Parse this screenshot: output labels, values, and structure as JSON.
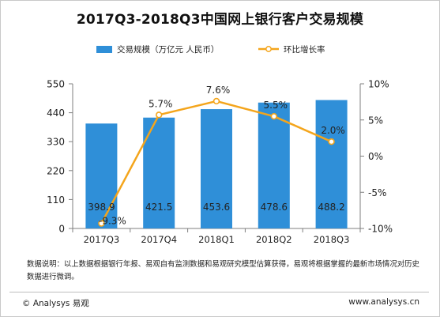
{
  "title": "2017Q3-2018Q3中国网上银行客户交易规模",
  "note": "数据说明：以上数据根据银行年报、易观自有监测数据和易观研究模型估算获得，易观将根据掌握的最新市场情况对历史数据进行微调。",
  "copyright": "© Analysys 易观",
  "site": "www.analysys.cn",
  "colors": {
    "bar": "#2f8fd8",
    "line": "#f4a51c",
    "axis": "#7f7f7f"
  },
  "chart_data": {
    "type": "bar+line",
    "categories": [
      "2017Q3",
      "2017Q4",
      "2018Q1",
      "2018Q2",
      "2018Q3"
    ],
    "series": [
      {
        "name": "交易规模（万亿元 人民币）",
        "type": "bar",
        "axis": "left",
        "values": [
          398.9,
          421.5,
          453.6,
          478.6,
          488.2
        ],
        "labels": [
          "398.9",
          "421.5",
          "453.6",
          "478.6",
          "488.2"
        ]
      },
      {
        "name": "环比增长率",
        "type": "line",
        "axis": "right",
        "values": [
          -9.3,
          5.7,
          7.6,
          5.5,
          2.0
        ],
        "labels": [
          "-9.3%",
          "5.7%",
          "7.6%",
          "5.5%",
          "2.0%"
        ]
      }
    ],
    "y_left": {
      "min": 0,
      "max": 550,
      "ticks": [
        0,
        110,
        220,
        330,
        440,
        550
      ],
      "tick_labels": [
        "0",
        "110",
        "220",
        "330",
        "440",
        "550"
      ]
    },
    "y_right": {
      "min": -10,
      "max": 10,
      "ticks": [
        -10,
        -5,
        0,
        5,
        10
      ],
      "tick_labels": [
        "-10%",
        "-5%",
        "0%",
        "5%",
        "10%"
      ]
    },
    "legend": "top",
    "grid": false
  }
}
